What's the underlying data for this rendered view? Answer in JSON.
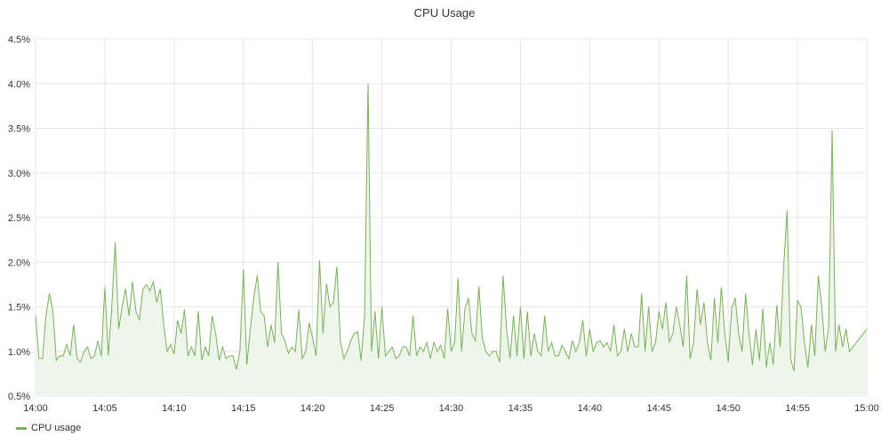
{
  "chart_data": {
    "type": "area",
    "title": "CPU Usage",
    "xlabel": "",
    "ylabel": "",
    "x_range": [
      "14:00",
      "15:00"
    ],
    "ylim": [
      0.5,
      4.5
    ],
    "y_ticks": [
      "0.5%",
      "1.0%",
      "1.5%",
      "2.0%",
      "2.5%",
      "3.0%",
      "3.5%",
      "4.0%",
      "4.5%"
    ],
    "y_tick_values": [
      0.5,
      1.0,
      1.5,
      2.0,
      2.5,
      3.0,
      3.5,
      4.0,
      4.5
    ],
    "x_ticks": [
      "14:00",
      "14:05",
      "14:10",
      "14:15",
      "14:20",
      "14:25",
      "14:30",
      "14:35",
      "14:40",
      "14:45",
      "14:50",
      "14:55",
      "15:00"
    ],
    "grid": true,
    "legend_position": "bottom-left",
    "series": [
      {
        "name": "CPU usage",
        "color": "#7ab05a",
        "fill": "#eef5ea",
        "points": [
          [
            "14:00",
            1.4
          ],
          [
            "14:00:15",
            0.92
          ],
          [
            "14:00:30",
            0.92
          ],
          [
            "14:00:45",
            1.4
          ],
          [
            "14:01",
            1.65
          ],
          [
            "14:01:15",
            1.45
          ],
          [
            "14:01:30",
            0.9
          ],
          [
            "14:01:45",
            0.95
          ],
          [
            "14:02",
            0.95
          ],
          [
            "14:02:15",
            1.08
          ],
          [
            "14:02:30",
            0.95
          ],
          [
            "14:02:45",
            1.3
          ],
          [
            "14:03",
            0.92
          ],
          [
            "14:03:15",
            0.88
          ],
          [
            "14:03:30",
            1.0
          ],
          [
            "14:03:45",
            1.05
          ],
          [
            "14:04",
            0.92
          ],
          [
            "14:04:15",
            0.95
          ],
          [
            "14:04:30",
            1.12
          ],
          [
            "14:04:45",
            0.95
          ],
          [
            "14:05",
            1.72
          ],
          [
            "14:05:15",
            0.95
          ],
          [
            "14:05:30",
            1.5
          ],
          [
            "14:05:45",
            2.22
          ],
          [
            "14:06",
            1.25
          ],
          [
            "14:06:15",
            1.5
          ],
          [
            "14:06:30",
            1.7
          ],
          [
            "14:06:45",
            1.4
          ],
          [
            "14:07",
            1.78
          ],
          [
            "14:07:15",
            1.45
          ],
          [
            "14:07:30",
            1.35
          ],
          [
            "14:07:45",
            1.7
          ],
          [
            "14:08",
            1.75
          ],
          [
            "14:08:15",
            1.68
          ],
          [
            "14:08:30",
            1.78
          ],
          [
            "14:08:45",
            1.55
          ],
          [
            "14:09",
            1.7
          ],
          [
            "14:09:15",
            1.3
          ],
          [
            "14:09:30",
            1.0
          ],
          [
            "14:09:45",
            1.08
          ],
          [
            "14:10",
            0.97
          ],
          [
            "14:10:15",
            1.35
          ],
          [
            "14:10:30",
            1.2
          ],
          [
            "14:10:45",
            1.47
          ],
          [
            "14:11",
            0.95
          ],
          [
            "14:11:15",
            1.05
          ],
          [
            "14:11:30",
            0.95
          ],
          [
            "14:11:45",
            1.45
          ],
          [
            "14:12",
            0.9
          ],
          [
            "14:12:15",
            1.05
          ],
          [
            "14:12:30",
            0.95
          ],
          [
            "14:12:45",
            1.4
          ],
          [
            "14:13",
            1.2
          ],
          [
            "14:13:15",
            0.9
          ],
          [
            "14:13:30",
            1.05
          ],
          [
            "14:13:45",
            0.92
          ],
          [
            "14:14",
            0.95
          ],
          [
            "14:14:15",
            0.95
          ],
          [
            "14:14:30",
            0.8
          ],
          [
            "14:14:45",
            1.0
          ],
          [
            "14:15",
            1.92
          ],
          [
            "14:15:15",
            0.85
          ],
          [
            "14:15:30",
            1.25
          ],
          [
            "14:15:45",
            1.6
          ],
          [
            "14:16",
            1.85
          ],
          [
            "14:16:15",
            1.45
          ],
          [
            "14:16:30",
            1.4
          ],
          [
            "14:16:45",
            1.05
          ],
          [
            "14:17",
            1.3
          ],
          [
            "14:17:15",
            1.1
          ],
          [
            "14:17:30",
            2.0
          ],
          [
            "14:17:45",
            1.2
          ],
          [
            "14:18",
            1.12
          ],
          [
            "14:18:15",
            0.98
          ],
          [
            "14:18:30",
            1.05
          ],
          [
            "14:18:45",
            1.0
          ],
          [
            "14:19",
            1.47
          ],
          [
            "14:19:15",
            0.92
          ],
          [
            "14:19:30",
            1.0
          ],
          [
            "14:19:45",
            1.32
          ],
          [
            "14:20",
            1.15
          ],
          [
            "14:20:15",
            0.95
          ],
          [
            "14:20:30",
            2.02
          ],
          [
            "14:20:45",
            1.2
          ],
          [
            "14:21",
            1.76
          ],
          [
            "14:21:15",
            1.5
          ],
          [
            "14:21:30",
            1.55
          ],
          [
            "14:21:45",
            1.95
          ],
          [
            "14:22",
            1.12
          ],
          [
            "14:22:15",
            0.92
          ],
          [
            "14:22:30",
            1.0
          ],
          [
            "14:22:45",
            1.12
          ],
          [
            "14:23",
            1.2
          ],
          [
            "14:23:15",
            1.22
          ],
          [
            "14:23:30",
            0.9
          ],
          [
            "14:23:45",
            1.4
          ],
          [
            "14:24",
            4.0
          ],
          [
            "14:24:15",
            1.0
          ],
          [
            "14:24:30",
            1.45
          ],
          [
            "14:24:45",
            0.92
          ],
          [
            "14:25",
            1.5
          ],
          [
            "14:25:15",
            0.95
          ],
          [
            "14:25:30",
            1.0
          ],
          [
            "14:25:45",
            1.05
          ],
          [
            "14:26",
            0.92
          ],
          [
            "14:26:15",
            0.95
          ],
          [
            "14:26:30",
            1.05
          ],
          [
            "14:26:45",
            1.05
          ],
          [
            "14:27",
            0.95
          ],
          [
            "14:27:15",
            1.4
          ],
          [
            "14:27:30",
            0.95
          ],
          [
            "14:27:45",
            1.05
          ],
          [
            "14:28",
            1.0
          ],
          [
            "14:28:15",
            1.1
          ],
          [
            "14:28:30",
            0.92
          ],
          [
            "14:28:45",
            1.1
          ],
          [
            "14:29",
            1.0
          ],
          [
            "14:29:15",
            1.07
          ],
          [
            "14:29:30",
            0.92
          ],
          [
            "14:29:45",
            1.48
          ],
          [
            "14:30",
            1.0
          ],
          [
            "14:30:15",
            1.1
          ],
          [
            "14:30:30",
            1.82
          ],
          [
            "14:30:45",
            1.0
          ],
          [
            "14:31",
            1.48
          ],
          [
            "14:31:15",
            1.6
          ],
          [
            "14:31:30",
            1.2
          ],
          [
            "14:31:45",
            1.12
          ],
          [
            "14:32",
            1.73
          ],
          [
            "14:32:15",
            1.15
          ],
          [
            "14:32:30",
            1.0
          ],
          [
            "14:32:45",
            0.95
          ],
          [
            "14:33",
            1.0
          ],
          [
            "14:33:15",
            1.0
          ],
          [
            "14:33:30",
            0.88
          ],
          [
            "14:33:45",
            1.85
          ],
          [
            "14:34",
            1.25
          ],
          [
            "14:34:15",
            0.92
          ],
          [
            "14:34:30",
            1.4
          ],
          [
            "14:34:45",
            0.95
          ],
          [
            "14:35",
            1.5
          ],
          [
            "14:35:15",
            0.92
          ],
          [
            "14:35:30",
            1.45
          ],
          [
            "14:35:45",
            0.95
          ],
          [
            "14:36",
            1.2
          ],
          [
            "14:36:15",
            1.0
          ],
          [
            "14:36:30",
            0.95
          ],
          [
            "14:36:45",
            1.4
          ],
          [
            "14:37",
            1.0
          ],
          [
            "14:37:15",
            1.1
          ],
          [
            "14:37:30",
            0.95
          ],
          [
            "14:37:45",
            0.95
          ],
          [
            "14:38",
            1.07
          ],
          [
            "14:38:15",
            1.0
          ],
          [
            "14:38:30",
            0.92
          ],
          [
            "14:38:45",
            1.12
          ],
          [
            "14:39",
            1.0
          ],
          [
            "14:39:15",
            1.1
          ],
          [
            "14:39:30",
            1.35
          ],
          [
            "14:39:45",
            0.95
          ],
          [
            "14:40",
            1.25
          ],
          [
            "14:40:15",
            1.0
          ],
          [
            "14:40:30",
            1.1
          ],
          [
            "14:40:45",
            1.12
          ],
          [
            "14:41",
            1.05
          ],
          [
            "14:41:15",
            1.1
          ],
          [
            "14:41:30",
            1.0
          ],
          [
            "14:41:45",
            1.3
          ],
          [
            "14:42",
            0.95
          ],
          [
            "14:42:15",
            1.0
          ],
          [
            "14:42:30",
            1.25
          ],
          [
            "14:42:45",
            1.0
          ],
          [
            "14:43",
            1.2
          ],
          [
            "14:43:15",
            1.05
          ],
          [
            "14:43:30",
            1.05
          ],
          [
            "14:43:45",
            1.65
          ],
          [
            "14:44",
            1.0
          ],
          [
            "14:44:15",
            1.5
          ],
          [
            "14:44:30",
            1.0
          ],
          [
            "14:44:45",
            1.1
          ],
          [
            "14:45",
            1.45
          ],
          [
            "14:45:15",
            1.25
          ],
          [
            "14:45:30",
            1.55
          ],
          [
            "14:45:45",
            1.1
          ],
          [
            "14:46",
            1.2
          ],
          [
            "14:46:15",
            1.5
          ],
          [
            "14:46:30",
            1.3
          ],
          [
            "14:46:45",
            1.05
          ],
          [
            "14:47",
            1.85
          ],
          [
            "14:47:15",
            0.92
          ],
          [
            "14:47:30",
            1.1
          ],
          [
            "14:47:45",
            1.7
          ],
          [
            "14:48",
            1.3
          ],
          [
            "14:48:15",
            1.55
          ],
          [
            "14:48:30",
            1.1
          ],
          [
            "14:48:45",
            0.9
          ],
          [
            "14:49",
            1.6
          ],
          [
            "14:49:15",
            1.1
          ],
          [
            "14:49:30",
            1.72
          ],
          [
            "14:49:45",
            1.2
          ],
          [
            "14:50",
            0.88
          ],
          [
            "14:50:15",
            1.48
          ],
          [
            "14:50:30",
            1.6
          ],
          [
            "14:50:45",
            1.2
          ],
          [
            "14:51",
            1.0
          ],
          [
            "14:51:15",
            1.65
          ],
          [
            "14:51:30",
            1.2
          ],
          [
            "14:51:45",
            0.85
          ],
          [
            "14:52",
            1.25
          ],
          [
            "14:52:15",
            0.9
          ],
          [
            "14:52:30",
            1.48
          ],
          [
            "14:52:45",
            0.82
          ],
          [
            "14:53",
            1.1
          ],
          [
            "14:53:15",
            0.85
          ],
          [
            "14:53:30",
            1.52
          ],
          [
            "14:53:45",
            1.05
          ],
          [
            "14:54",
            1.95
          ],
          [
            "14:54:15",
            2.58
          ],
          [
            "14:54:30",
            0.92
          ],
          [
            "14:54:45",
            0.78
          ],
          [
            "14:55",
            1.57
          ],
          [
            "14:55:15",
            1.5
          ],
          [
            "14:55:30",
            1.1
          ],
          [
            "14:55:45",
            0.82
          ],
          [
            "14:56",
            1.3
          ],
          [
            "14:56:15",
            0.95
          ],
          [
            "14:56:30",
            1.85
          ],
          [
            "14:56:45",
            1.5
          ],
          [
            "14:57",
            1.0
          ],
          [
            "14:57:15",
            1.28
          ],
          [
            "14:57:30",
            3.48
          ],
          [
            "14:57:45",
            1.0
          ],
          [
            "14:58",
            1.3
          ],
          [
            "14:58:15",
            1.05
          ],
          [
            "14:58:30",
            1.25
          ],
          [
            "14:58:45",
            1.0
          ],
          [
            "15:00",
            1.25
          ]
        ]
      }
    ]
  },
  "legend": {
    "label": "CPU usage"
  }
}
